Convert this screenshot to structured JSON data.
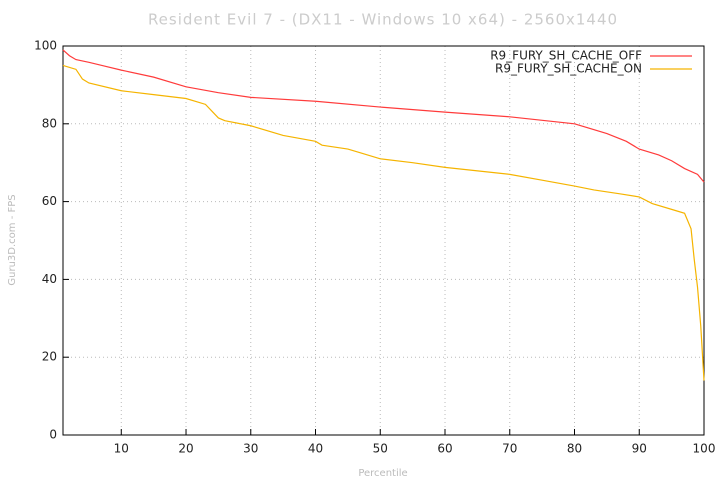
{
  "chart_data": {
    "type": "line",
    "title": "Resident Evil 7 - (DX11 - Windows 10 x64) - 2560x1440",
    "xlabel": "Percentile",
    "ylabel": "Guru3D.com - FPS",
    "xlim": [
      1,
      100
    ],
    "ylim": [
      0,
      100
    ],
    "xticks": [
      10,
      20,
      30,
      40,
      50,
      60,
      70,
      80,
      90,
      100
    ],
    "yticks": [
      0,
      20,
      40,
      60,
      80,
      100
    ],
    "grid": true,
    "legend": "top-right",
    "series": [
      {
        "name": "R9_FURY_SH_CACHE_OFF",
        "color": "#ff3b3b",
        "x": [
          1,
          2,
          3,
          5,
          7,
          10,
          15,
          20,
          25,
          30,
          40,
          50,
          60,
          70,
          80,
          85,
          88,
          90,
          93,
          95,
          97,
          99,
          100
        ],
        "values": [
          99,
          97.5,
          96.5,
          95.8,
          95,
          93.8,
          92,
          89.5,
          88,
          86.8,
          85.8,
          84.3,
          83,
          81.8,
          80,
          77.5,
          75.5,
          73.5,
          72,
          70.5,
          68.5,
          67,
          65
        ]
      },
      {
        "name": "R9_FURY_SH_CACHE_ON",
        "color": "#f5b400",
        "x": [
          1,
          3,
          4,
          5,
          10,
          15,
          20,
          23,
          25,
          26,
          30,
          35,
          40,
          41,
          45,
          47,
          50,
          55,
          60,
          70,
          75,
          80,
          83,
          87,
          90,
          92,
          95,
          97,
          98,
          98.5,
          99,
          99.5,
          100
        ],
        "values": [
          95,
          94,
          91.5,
          90.5,
          88.5,
          87.5,
          86.5,
          85,
          81.5,
          80.8,
          79.5,
          77,
          75.5,
          74.5,
          73.5,
          72.5,
          71,
          70,
          68.8,
          67,
          65.5,
          64,
          63,
          62,
          61.2,
          59.5,
          58,
          57,
          53,
          45,
          38,
          28,
          14
        ]
      }
    ]
  }
}
